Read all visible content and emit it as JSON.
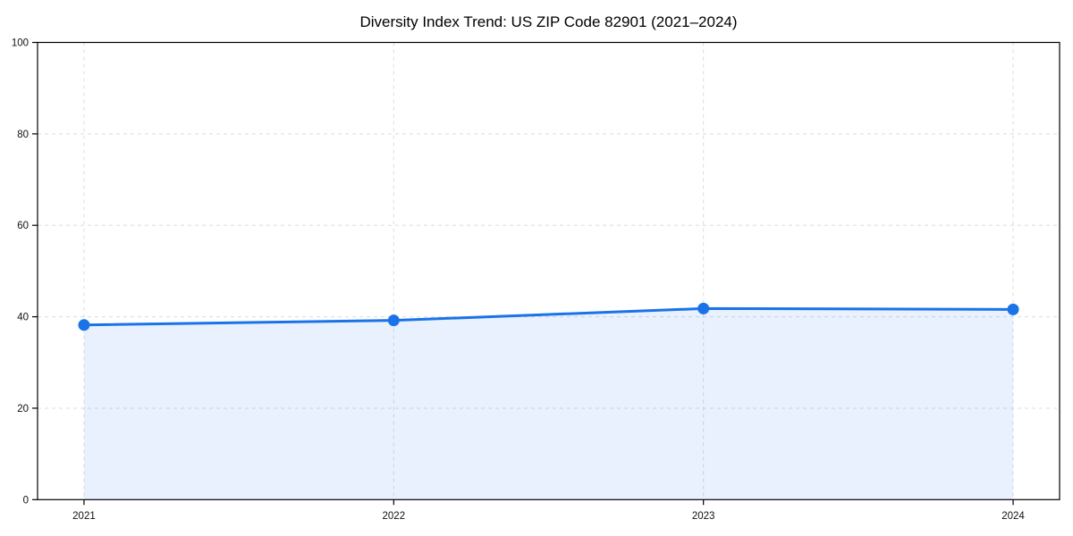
{
  "chart_data": {
    "type": "area",
    "title": "Diversity Index Trend: US ZIP Code 82901 (2021–2024)",
    "x": [
      2021,
      2022,
      2023,
      2024
    ],
    "values": [
      38.2,
      39.2,
      41.8,
      41.6
    ],
    "xlabel": "",
    "ylabel": "",
    "xticks": [
      "2021",
      "2022",
      "2023",
      "2024"
    ],
    "yticks": [
      0,
      20,
      40,
      60,
      80,
      100
    ],
    "ylim": [
      0,
      100
    ],
    "grid": true,
    "grid_style": "dashed",
    "legend": "none",
    "colors": {
      "line": "#1a73e8",
      "marker": "#1a73e8",
      "area_fill": "#1a73e8",
      "area_opacity": 0.1,
      "grid": "#dcdcdc",
      "axis": "#000000",
      "text": "#000000",
      "background": "#ffffff"
    }
  }
}
